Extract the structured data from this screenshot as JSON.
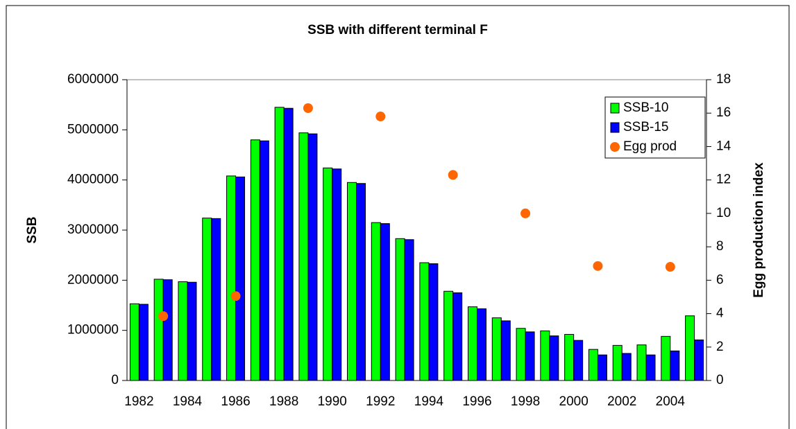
{
  "chart_data": {
    "type": "bar",
    "title": "SSB with different terminal F",
    "y_label": "SSB",
    "y2_label": "Egg production index",
    "categories": [
      "1982",
      null,
      "1984",
      null,
      "1986",
      null,
      "1988",
      null,
      "1990",
      null,
      "1992",
      null,
      "1994",
      null,
      "1996",
      null,
      "1998",
      null,
      "2000",
      null,
      "2002",
      null,
      "2004",
      null
    ],
    "series": [
      {
        "name": "SSB-10",
        "color": "#00ff00",
        "values": [
          1530000,
          2020000,
          1970000,
          3240000,
          4080000,
          4800000,
          5450000,
          4940000,
          4240000,
          3950000,
          3150000,
          2830000,
          2350000,
          1780000,
          1470000,
          1250000,
          1040000,
          990000,
          920000,
          620000,
          700000,
          710000,
          880000,
          1290000
        ]
      },
      {
        "name": "SSB-15",
        "color": "#0000ff",
        "values": [
          1520000,
          2010000,
          1960000,
          3230000,
          4060000,
          4780000,
          5430000,
          4920000,
          4220000,
          3930000,
          3130000,
          2810000,
          2330000,
          1750000,
          1430000,
          1190000,
          970000,
          890000,
          800000,
          510000,
          540000,
          510000,
          590000,
          810000
        ]
      },
      {
        "name": "Egg prod",
        "color": "#ff6600",
        "type": "scatter",
        "axis": "y2",
        "values": [
          null,
          3.85,
          null,
          null,
          5.05,
          null,
          null,
          16.3,
          null,
          null,
          15.8,
          null,
          null,
          12.3,
          null,
          null,
          10.0,
          null,
          null,
          6.85,
          null,
          null,
          6.8,
          null
        ]
      }
    ],
    "ylim": [
      0,
      6000000
    ],
    "yticks": [
      0,
      1000000,
      2000000,
      3000000,
      4000000,
      5000000,
      6000000
    ],
    "y2lim": [
      0,
      18
    ],
    "y2ticks": [
      0,
      2,
      4,
      6,
      8,
      10,
      12,
      14,
      16,
      18
    ],
    "legend": "top-right"
  }
}
